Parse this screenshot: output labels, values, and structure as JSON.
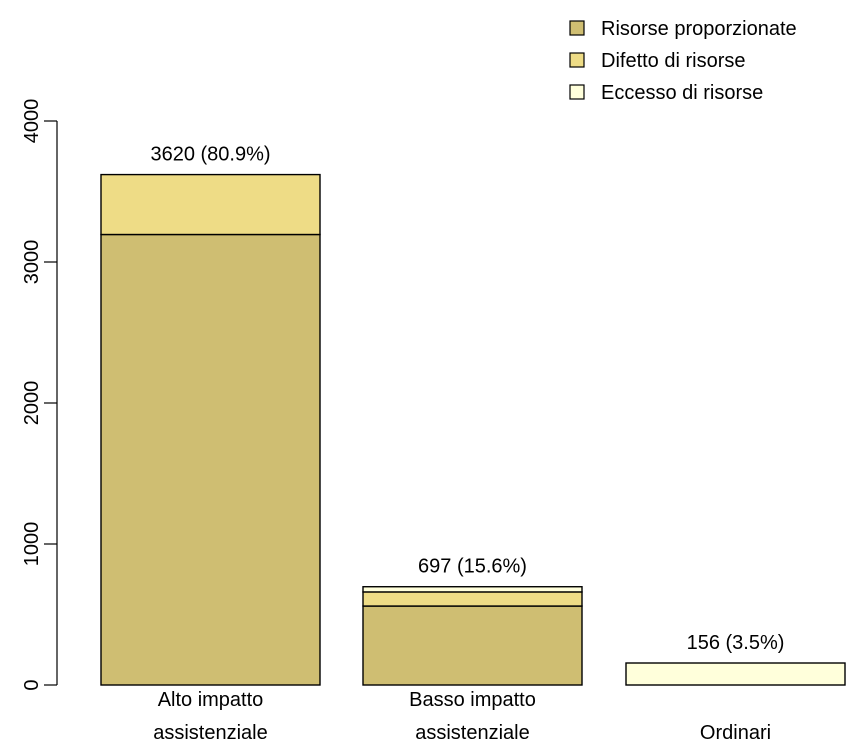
{
  "chart_data": {
    "type": "bar",
    "stacked": true,
    "categories": [
      "Alto impatto\nassistenziale",
      "Basso impatto\nassistenziale",
      "Ordinari"
    ],
    "series": [
      {
        "name": "Risorse proporzionate",
        "color": "#CFBE72",
        "values": [
          3195,
          560,
          0
        ]
      },
      {
        "name": "Difetto di risorse",
        "color": "#EEDC86",
        "values": [
          425,
          100,
          0
        ]
      },
      {
        "name": "Eccesso di risorse",
        "color": "#FFFFDB",
        "values": [
          0,
          37,
          156
        ]
      }
    ],
    "bar_labels": [
      "3620 (80.9%)",
      "697 (15.6%)",
      "156 (3.5%)"
    ],
    "yticks": [
      0,
      1000,
      2000,
      3000,
      4000
    ],
    "ylim": [
      0,
      4000
    ],
    "legend_position": "top-right",
    "grid": false
  }
}
